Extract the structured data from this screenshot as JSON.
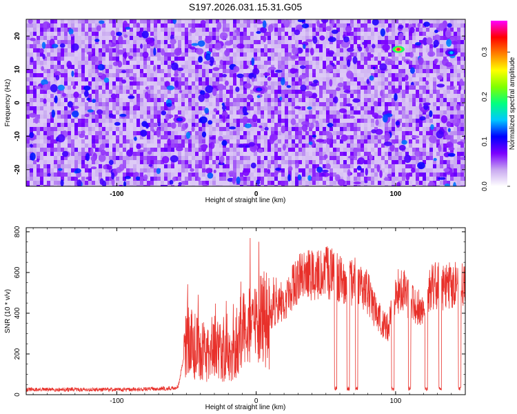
{
  "figure": {
    "title": "S197.2026.031.15.31.G05"
  },
  "chart_data": [
    {
      "type": "heatmap",
      "title": "S197.2026.031.15.31.G05",
      "xlabel": "Height of straight line (km)",
      "ylabel": "Frequency (Hz)",
      "xlim": [
        -165,
        150
      ],
      "ylim": [
        -25,
        25
      ],
      "x_ticks": [
        -100,
        0,
        100
      ],
      "y_ticks": [
        -20,
        -10,
        0,
        10,
        20
      ],
      "colorbar": {
        "label": "Normalized spectral amplitude",
        "range": [
          0,
          0.37
        ],
        "ticks": [
          "0.0",
          "0.1",
          "0.2",
          "0.3"
        ],
        "colormap": [
          "#ffffff",
          "#c8a8f0",
          "#7a00ff",
          "#0000ff",
          "#00c8ff",
          "#00ff80",
          "#80ff00",
          "#ffff00",
          "#ff8000",
          "#ff0000",
          "#ff00ff"
        ]
      },
      "hotspots": [
        {
          "x": 102,
          "y": 16,
          "value": 0.35
        },
        {
          "x": 140,
          "y": 15,
          "value": 0.15
        },
        {
          "x": -55,
          "y": -5,
          "value": 0.12
        },
        {
          "x": 2,
          "y": 4,
          "value": 0.12
        }
      ]
    },
    {
      "type": "line",
      "xlabel": "Height of straight line (km)",
      "ylabel": "SNR (10 * v/v)",
      "xlim": [
        -165,
        150
      ],
      "ylim": [
        0,
        820
      ],
      "x_ticks": [
        -100,
        0,
        100
      ],
      "y_ticks": [
        0,
        200,
        400,
        600,
        800
      ],
      "series": [
        {
          "color": "#e8302a",
          "x": [
            -165,
            -150,
            -130,
            -110,
            -90,
            -70,
            -60,
            -56,
            -52,
            -50,
            -48,
            -45,
            -42,
            -40,
            -35,
            -30,
            -25,
            -20,
            -15,
            -10,
            -5,
            0,
            5,
            10,
            15,
            20,
            25,
            30,
            35,
            40,
            45,
            50,
            55,
            60,
            65,
            70,
            75,
            80,
            85,
            90,
            95,
            100,
            105,
            110,
            115,
            120,
            125,
            130,
            135,
            140,
            145,
            150
          ],
          "values": [
            25,
            25,
            25,
            25,
            25,
            30,
            30,
            40,
            180,
            300,
            260,
            240,
            230,
            220,
            200,
            220,
            200,
            200,
            240,
            300,
            330,
            320,
            400,
            400,
            420,
            460,
            520,
            560,
            600,
            580,
            590,
            600,
            590,
            580,
            560,
            560,
            540,
            500,
            420,
            350,
            330,
            500,
            520,
            450,
            430,
            420,
            520,
            540,
            520,
            540,
            550,
            560
          ]
        }
      ]
    }
  ]
}
